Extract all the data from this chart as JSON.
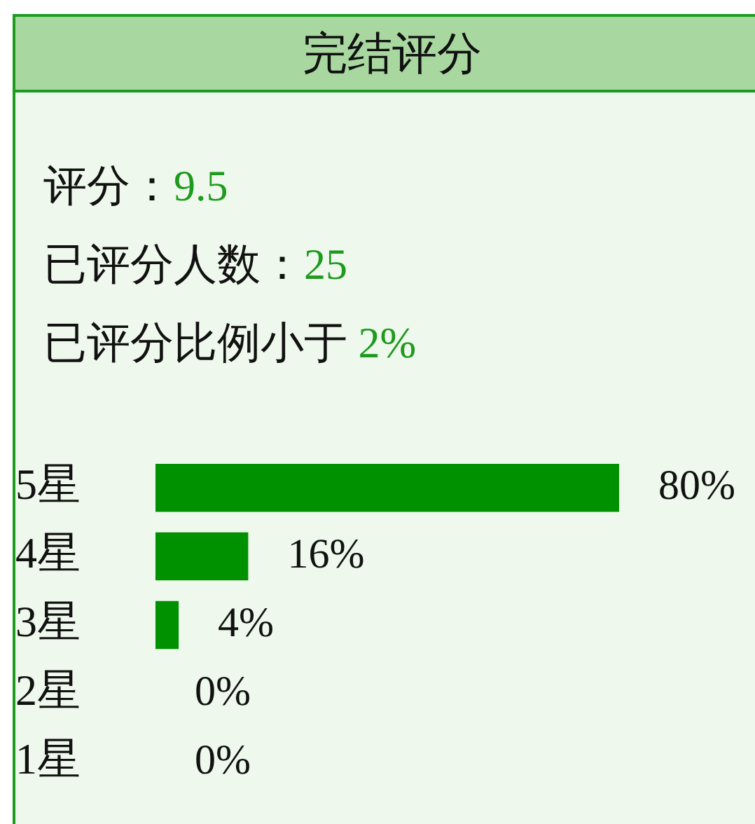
{
  "chart_data": {
    "type": "bar",
    "orientation": "horizontal",
    "title": "完结评分",
    "annotations": [
      "评分：9.5",
      "已评分人数：25",
      "已评分比例小于 2%"
    ],
    "categories": [
      "5星",
      "4星",
      "3星",
      "2星",
      "1星"
    ],
    "values": [
      80,
      16,
      4,
      0,
      0
    ],
    "value_labels": [
      "80%",
      "16%",
      "4%",
      "0%",
      "0%"
    ],
    "color": "#009100",
    "legend": false,
    "tick_labels": "y"
  }
}
